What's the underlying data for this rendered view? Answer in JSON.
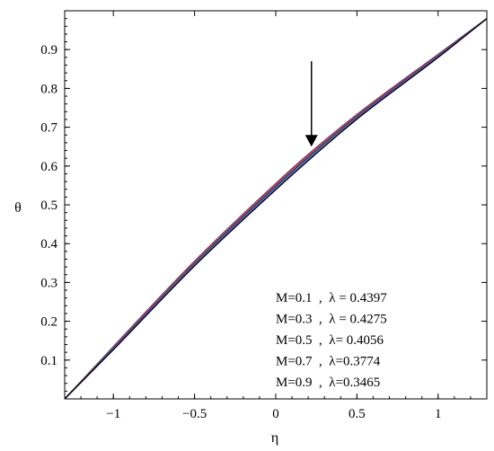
{
  "chart_data": {
    "type": "line",
    "title": "",
    "xlabel": "η",
    "ylabel": "θ",
    "xlim": [
      -1.3,
      1.3
    ],
    "ylim": [
      0,
      1
    ],
    "xticks": [
      -1,
      -0.5,
      0,
      0.5,
      1
    ],
    "xtick_labels": [
      "−1",
      "−0.5",
      "0",
      "0.5",
      "1"
    ],
    "yticks": [
      0.1,
      0.2,
      0.3,
      0.4,
      0.5,
      0.6,
      0.7,
      0.8,
      0.9
    ],
    "ytick_labels": [
      "0.1",
      "0.2",
      "0.3",
      "0.4",
      "0.5",
      "0.6",
      "0.7",
      "0.8",
      "0.9"
    ],
    "grid": false,
    "legend_position": "bottom-right",
    "legend": [
      "M=0.1  ,  λ = 0.4397",
      "M=0.3  ,  λ = 0.4275",
      "M=0.5  ,  λ= 0.4056",
      "M=0.7  ,  λ=0.3774",
      "M=0.9  ,  λ=0.3465"
    ],
    "arrow": {
      "x": 0.22,
      "y_start": 0.87,
      "y_end": 0.65,
      "direction": "down"
    },
    "x": [
      -1.3,
      -1.0,
      -0.5,
      0.0,
      0.2,
      0.5,
      1.0,
      1.3
    ],
    "series": [
      {
        "values": [
          0.0,
          0.135,
          0.355,
          0.555,
          0.63,
          0.733,
          0.888,
          0.98
        ],
        "color": "#e8008a"
      },
      {
        "values": [
          0.0,
          0.133,
          0.352,
          0.551,
          0.626,
          0.73,
          0.886,
          0.98
        ],
        "color": "#2a9a2a"
      },
      {
        "values": [
          0.0,
          0.131,
          0.349,
          0.547,
          0.622,
          0.727,
          0.884,
          0.98
        ],
        "color": "#2222cc"
      },
      {
        "values": [
          0.0,
          0.129,
          0.346,
          0.543,
          0.618,
          0.724,
          0.882,
          0.98
        ],
        "color": "#808080"
      },
      {
        "values": [
          0.0,
          0.127,
          0.343,
          0.539,
          0.614,
          0.721,
          0.88,
          0.98
        ],
        "color": "#000000"
      }
    ]
  }
}
